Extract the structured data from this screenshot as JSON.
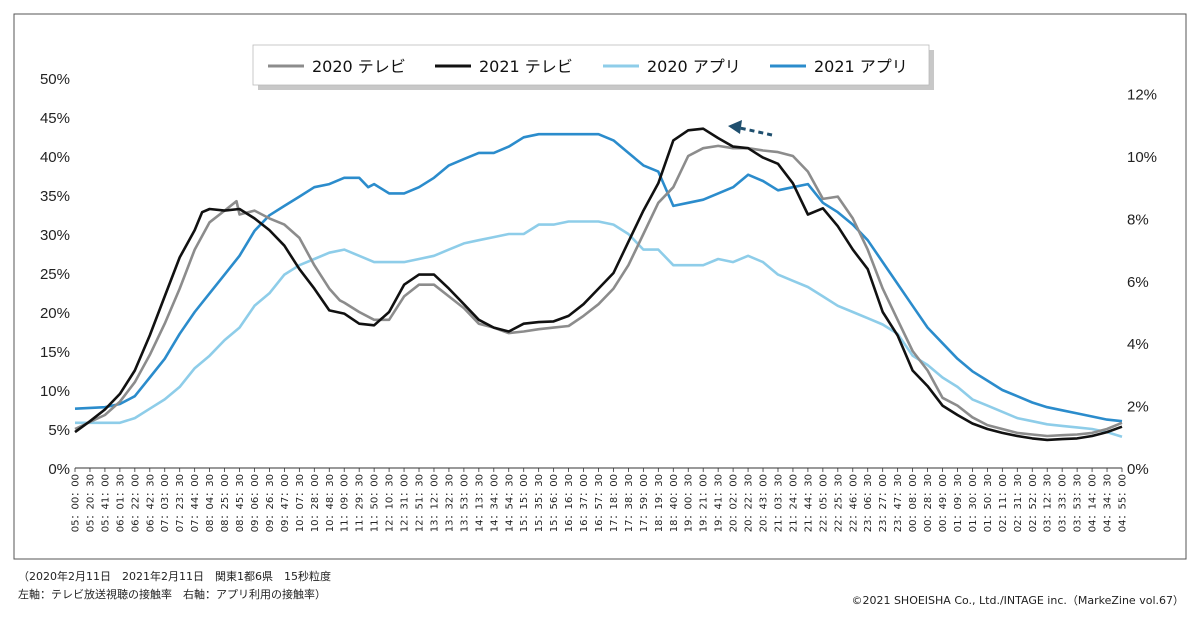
{
  "chart_data": {
    "type": "line",
    "title": "",
    "left_axis": {
      "ylim": [
        0,
        50
      ],
      "ticks": [
        "0%",
        "5%",
        "10%",
        "15%",
        "20%",
        "25%",
        "30%",
        "35%",
        "40%",
        "45%",
        "50%"
      ]
    },
    "right_axis": {
      "ylim": [
        0,
        12.5
      ],
      "ticks": [
        "0%",
        "2%",
        "4%",
        "6%",
        "8%",
        "10%",
        "12%"
      ]
    },
    "x_labels": [
      "05：00：00",
      "05：20：30",
      "05：41：00",
      "06：01：30",
      "06：22：00",
      "06：42：30",
      "07：03：00",
      "07：23：30",
      "07：44：00",
      "08：04：30",
      "08：25：00",
      "08：45：30",
      "09：06：00",
      "09：26：30",
      "09：47：00",
      "10：07：30",
      "10：28：00",
      "10：48：30",
      "11：09：00",
      "11：29：30",
      "11：50：00",
      "12：10：30",
      "12：31：00",
      "12：51：30",
      "13：12：00",
      "13：32：30",
      "13：53：00",
      "14：13：30",
      "14：34：00",
      "14：54：30",
      "15：15：00",
      "15：35：30",
      "15：56：00",
      "16：16：30",
      "16：37：00",
      "16：57：30",
      "17：18：00",
      "17：38：30",
      "17：59：00",
      "18：19：30",
      "18：40：00",
      "19：00：30",
      "19：21：00",
      "19：41：30",
      "20：02：00",
      "20：22：30",
      "20：43：00",
      "21：03：30",
      "21：24：00",
      "21：44：30",
      "22：05：00",
      "22：25：30",
      "22：46：00",
      "23：06：30",
      "23：27：00",
      "23：47：30",
      "00：08：00",
      "00：28：30",
      "00：49：00",
      "01：09：30",
      "01：30：00",
      "01：50：30",
      "02：11：00",
      "02：31：30",
      "02：52：00",
      "03：12：30",
      "03：33：00",
      "03：53：30",
      "04：14：00",
      "04：34：30",
      "04：55：00"
    ],
    "legend": [
      "2020 テレビ",
      "2021 テレビ",
      "2020 アプリ",
      "2021 アプリ"
    ],
    "legend_position": "top-center",
    "series": [
      {
        "name": "2020 テレビ",
        "axis": "left",
        "color": "#8c8c8c",
        "points": [
          [
            0,
            5
          ],
          [
            2,
            6.8
          ],
          [
            3,
            8.5
          ],
          [
            4,
            11
          ],
          [
            5,
            14.5
          ],
          [
            6,
            18.5
          ],
          [
            7,
            23
          ],
          [
            8,
            28
          ],
          [
            9,
            31.5
          ],
          [
            10,
            33
          ],
          [
            10.8,
            34.2
          ],
          [
            11,
            32.5
          ],
          [
            12,
            33
          ],
          [
            13,
            32
          ],
          [
            14,
            31.2
          ],
          [
            15,
            29.5
          ],
          [
            16,
            26
          ],
          [
            17,
            23
          ],
          [
            17.7,
            21.5
          ],
          [
            18,
            21.2
          ],
          [
            19,
            20
          ],
          [
            20,
            19
          ],
          [
            21,
            19
          ],
          [
            22,
            22
          ],
          [
            23,
            23.5
          ],
          [
            24,
            23.5
          ],
          [
            25,
            22
          ],
          [
            26,
            20.5
          ],
          [
            27,
            18.5
          ],
          [
            28,
            18
          ],
          [
            29,
            17.3
          ],
          [
            30,
            17.5
          ],
          [
            31,
            17.8
          ],
          [
            32,
            18
          ],
          [
            33,
            18.2
          ],
          [
            34,
            19.5
          ],
          [
            35,
            21
          ],
          [
            36,
            23
          ],
          [
            37,
            26
          ],
          [
            38,
            30
          ],
          [
            39,
            34
          ],
          [
            40,
            36
          ],
          [
            41,
            40
          ],
          [
            42,
            41
          ],
          [
            43,
            41.3
          ],
          [
            44,
            41
          ],
          [
            45,
            41
          ],
          [
            46,
            40.7
          ],
          [
            47,
            40.5
          ],
          [
            48,
            40
          ],
          [
            49,
            38
          ],
          [
            50,
            34.5
          ],
          [
            51,
            34.8
          ],
          [
            52,
            32
          ],
          [
            53,
            28
          ],
          [
            54,
            23
          ],
          [
            55,
            19
          ],
          [
            56,
            15
          ],
          [
            57,
            12.5
          ],
          [
            58,
            9
          ],
          [
            59,
            8
          ],
          [
            60,
            6.5
          ],
          [
            61,
            5.5
          ],
          [
            62,
            5
          ],
          [
            63,
            4.5
          ],
          [
            64,
            4.3
          ],
          [
            65,
            4.1
          ],
          [
            66,
            4.2
          ],
          [
            67,
            4.3
          ],
          [
            68,
            4.5
          ],
          [
            69,
            5
          ],
          [
            70,
            5.8
          ]
        ]
      },
      {
        "name": "2021 テレビ",
        "axis": "left",
        "color": "#111111",
        "points": [
          [
            0,
            4.6
          ],
          [
            1,
            6
          ],
          [
            2,
            7.5
          ],
          [
            3,
            9.5
          ],
          [
            4,
            12.5
          ],
          [
            5,
            17
          ],
          [
            6,
            22
          ],
          [
            7,
            27
          ],
          [
            8,
            30.5
          ],
          [
            8.5,
            32.8
          ],
          [
            9,
            33.2
          ],
          [
            10,
            33
          ],
          [
            11,
            33.2
          ],
          [
            12,
            32
          ],
          [
            13,
            30.5
          ],
          [
            14,
            28.5
          ],
          [
            15,
            25.5
          ],
          [
            16,
            23
          ],
          [
            17,
            20.2
          ],
          [
            18,
            19.8
          ],
          [
            19,
            18.5
          ],
          [
            20,
            18.3
          ],
          [
            21,
            20
          ],
          [
            22,
            23.5
          ],
          [
            23,
            24.8
          ],
          [
            24,
            24.8
          ],
          [
            25,
            23
          ],
          [
            26,
            21
          ],
          [
            27,
            19
          ],
          [
            28,
            18
          ],
          [
            29,
            17.5
          ],
          [
            30,
            18.5
          ],
          [
            31,
            18.7
          ],
          [
            32,
            18.8
          ],
          [
            33,
            19.5
          ],
          [
            34,
            21
          ],
          [
            35,
            23
          ],
          [
            36,
            25
          ],
          [
            37,
            29
          ],
          [
            38,
            33
          ],
          [
            39,
            36.5
          ],
          [
            40,
            42
          ],
          [
            41,
            43.3
          ],
          [
            42,
            43.5
          ],
          [
            43,
            42.3
          ],
          [
            44,
            41.2
          ],
          [
            45,
            41
          ],
          [
            46,
            39.8
          ],
          [
            47,
            39
          ],
          [
            48,
            36.5
          ],
          [
            49,
            32.5
          ],
          [
            50,
            33.3
          ],
          [
            51,
            31
          ],
          [
            52,
            28
          ],
          [
            53,
            25.5
          ],
          [
            54,
            20
          ],
          [
            55,
            17
          ],
          [
            56,
            12.5
          ],
          [
            57,
            10.5
          ],
          [
            58,
            8
          ],
          [
            59,
            6.8
          ],
          [
            60,
            5.7
          ],
          [
            61,
            5
          ],
          [
            62,
            4.5
          ],
          [
            63,
            4.1
          ],
          [
            64,
            3.8
          ],
          [
            65,
            3.6
          ],
          [
            66,
            3.7
          ],
          [
            67,
            3.8
          ],
          [
            68,
            4.1
          ],
          [
            69,
            4.6
          ],
          [
            70,
            5.3
          ]
        ]
      },
      {
        "name": "2020 アプリ",
        "axis": "right",
        "color": "#8ecde9",
        "points": [
          [
            0,
            1.45
          ],
          [
            2,
            1.45
          ],
          [
            3,
            1.45
          ],
          [
            4,
            1.6
          ],
          [
            5,
            1.9
          ],
          [
            6,
            2.2
          ],
          [
            7,
            2.6
          ],
          [
            8,
            3.2
          ],
          [
            9,
            3.6
          ],
          [
            10,
            4.1
          ],
          [
            11,
            4.5
          ],
          [
            12,
            5.2
          ],
          [
            13,
            5.6
          ],
          [
            14,
            6.2
          ],
          [
            15,
            6.5
          ],
          [
            16,
            6.7
          ],
          [
            17,
            6.9
          ],
          [
            18,
            7
          ],
          [
            18.5,
            6.9
          ],
          [
            19,
            6.8
          ],
          [
            20,
            6.6
          ],
          [
            21,
            6.6
          ],
          [
            22,
            6.6
          ],
          [
            23,
            6.7
          ],
          [
            24,
            6.8
          ],
          [
            25,
            7
          ],
          [
            26,
            7.2
          ],
          [
            27,
            7.3
          ],
          [
            28,
            7.4
          ],
          [
            29,
            7.5
          ],
          [
            30,
            7.5
          ],
          [
            31,
            7.8
          ],
          [
            32,
            7.8
          ],
          [
            33,
            7.9
          ],
          [
            34,
            7.9
          ],
          [
            35,
            7.9
          ],
          [
            36,
            7.8
          ],
          [
            37,
            7.5
          ],
          [
            38,
            7
          ],
          [
            39,
            7
          ],
          [
            40,
            6.5
          ],
          [
            41,
            6.5
          ],
          [
            42,
            6.5
          ],
          [
            43,
            6.7
          ],
          [
            44,
            6.6
          ],
          [
            45,
            6.8
          ],
          [
            46,
            6.6
          ],
          [
            47,
            6.2
          ],
          [
            48,
            6
          ],
          [
            49,
            5.8
          ],
          [
            50,
            5.5
          ],
          [
            51,
            5.2
          ],
          [
            52,
            5
          ],
          [
            53,
            4.8
          ],
          [
            54,
            4.6
          ],
          [
            55,
            4.3
          ],
          [
            56,
            3.6
          ],
          [
            57,
            3.3
          ],
          [
            58,
            2.9
          ],
          [
            59,
            2.6
          ],
          [
            60,
            2.2
          ],
          [
            61,
            2
          ],
          [
            62,
            1.8
          ],
          [
            63,
            1.6
          ],
          [
            64,
            1.5
          ],
          [
            65,
            1.4
          ],
          [
            66,
            1.35
          ],
          [
            67,
            1.3
          ],
          [
            68,
            1.25
          ],
          [
            69,
            1.15
          ],
          [
            70,
            1.0
          ]
        ]
      },
      {
        "name": "2021 アプリ",
        "axis": "right",
        "color": "#2b8ccc",
        "points": [
          [
            0,
            1.9
          ],
          [
            2,
            1.95
          ],
          [
            3,
            2.05
          ],
          [
            4,
            2.3
          ],
          [
            5,
            2.9
          ],
          [
            6,
            3.5
          ],
          [
            7,
            4.3
          ],
          [
            8,
            5
          ],
          [
            9,
            5.6
          ],
          [
            10,
            6.2
          ],
          [
            11,
            6.8
          ],
          [
            12,
            7.6
          ],
          [
            13,
            8.1
          ],
          [
            14,
            8.4
          ],
          [
            15,
            8.7
          ],
          [
            16,
            9
          ],
          [
            17,
            9.1
          ],
          [
            18,
            9.3
          ],
          [
            19,
            9.3
          ],
          [
            19.6,
            9.0
          ],
          [
            20,
            9.1
          ],
          [
            21,
            8.8
          ],
          [
            22,
            8.8
          ],
          [
            23,
            9
          ],
          [
            24,
            9.3
          ],
          [
            25,
            9.7
          ],
          [
            26,
            9.9
          ],
          [
            27,
            10.1
          ],
          [
            28,
            10.1
          ],
          [
            29,
            10.3
          ],
          [
            30,
            10.6
          ],
          [
            31,
            10.7
          ],
          [
            32,
            10.7
          ],
          [
            33,
            10.7
          ],
          [
            34,
            10.7
          ],
          [
            35,
            10.7
          ],
          [
            36,
            10.5
          ],
          [
            37,
            10.1
          ],
          [
            38,
            9.7
          ],
          [
            39,
            9.5
          ],
          [
            40,
            8.4
          ],
          [
            41,
            8.5
          ],
          [
            42,
            8.6
          ],
          [
            43,
            8.8
          ],
          [
            44,
            9
          ],
          [
            45,
            9.4
          ],
          [
            46,
            9.2
          ],
          [
            47,
            8.9
          ],
          [
            48,
            9
          ],
          [
            49,
            9.1
          ],
          [
            50,
            8.5
          ],
          [
            51,
            8.2
          ],
          [
            52,
            7.8
          ],
          [
            53,
            7.3
          ],
          [
            54,
            6.6
          ],
          [
            55,
            5.9
          ],
          [
            56,
            5.2
          ],
          [
            57,
            4.5
          ],
          [
            58,
            4
          ],
          [
            59,
            3.5
          ],
          [
            60,
            3.1
          ],
          [
            61,
            2.8
          ],
          [
            62,
            2.5
          ],
          [
            63,
            2.3
          ],
          [
            64,
            2.1
          ],
          [
            65,
            1.95
          ],
          [
            66,
            1.85
          ],
          [
            67,
            1.75
          ],
          [
            68,
            1.65
          ],
          [
            69,
            1.55
          ],
          [
            70,
            1.5
          ]
        ]
      }
    ],
    "annotation": "dashed arrow pointing left near 20:02 peak"
  },
  "notes": {
    "line1": "（2020年2月11日　2021年2月11日　関東1都6県　15秒粒度",
    "line2": "左軸：テレビ放送視聴の接触率　右軸：アプリ利用の接触率）",
    "copyright": "©2021 SHOEISHA Co., Ltd./INTAGE inc.（MarkeZine vol.67）"
  }
}
